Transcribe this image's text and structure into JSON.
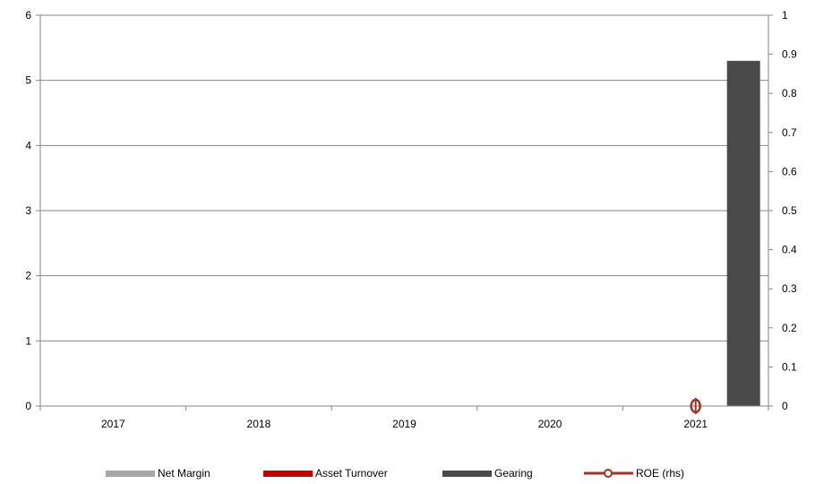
{
  "chart_data": {
    "type": "bar",
    "categories": [
      "2017",
      "2018",
      "2019",
      "2020",
      "2021"
    ],
    "series": [
      {
        "name": "Net Margin",
        "type": "bar",
        "axis": "left",
        "color": "#a6a6a6",
        "values": [
          null,
          null,
          null,
          null,
          0
        ]
      },
      {
        "name": "Asset Turnover",
        "type": "bar",
        "axis": "left",
        "color": "#c00000",
        "values": [
          null,
          null,
          null,
          null,
          0
        ]
      },
      {
        "name": "Gearing",
        "type": "bar",
        "axis": "left",
        "color": "#4a4a4a",
        "values": [
          null,
          null,
          null,
          null,
          5.3
        ]
      },
      {
        "name": "ROE (rhs)",
        "type": "line",
        "axis": "right",
        "color": "#a0342b",
        "values": [
          null,
          null,
          null,
          null,
          0
        ]
      }
    ],
    "y_left": {
      "min": 0,
      "max": 6,
      "ticks": [
        "0",
        "1",
        "2",
        "3",
        "4",
        "5",
        "6"
      ]
    },
    "y_right": {
      "min": 0,
      "max": 1,
      "ticks": [
        "0",
        "0.1",
        "0.2",
        "0.3",
        "0.4",
        "0.5",
        "0.6",
        "0.7",
        "0.8",
        "0.9",
        "1"
      ]
    },
    "grid": "horizontal",
    "legend_position": "bottom"
  }
}
